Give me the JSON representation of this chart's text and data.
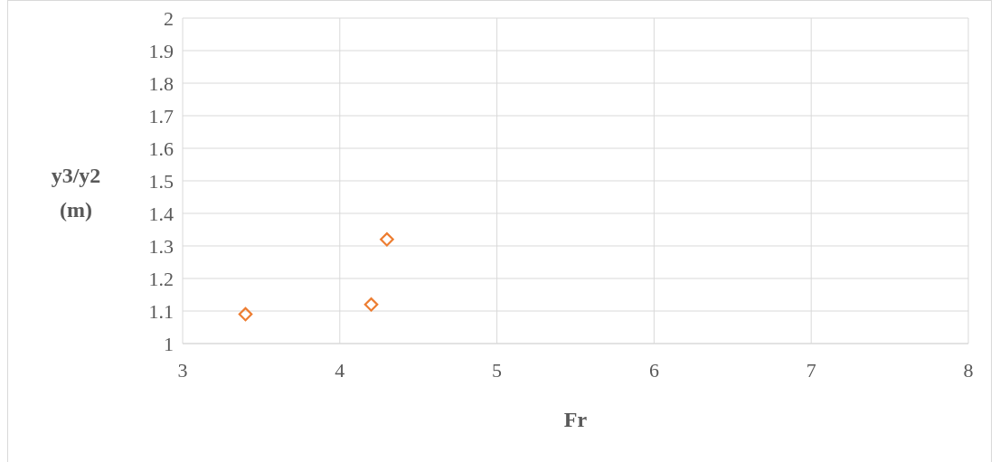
{
  "chart_data": {
    "type": "scatter",
    "xlabel": "Fr",
    "ylabel": "y3/y2 (m)",
    "x": [
      3.4,
      4.2,
      4.3
    ],
    "series": [
      {
        "color": "#ed7d31",
        "values": [
          1.09,
          1.12,
          1.32
        ]
      }
    ],
    "xlim": [
      3,
      8
    ],
    "xticks": [
      3,
      4,
      5,
      6,
      7,
      8
    ],
    "ylim": [
      1,
      2
    ],
    "yticks": [
      1,
      1.1,
      1.2,
      1.3,
      1.4,
      1.5,
      1.6,
      1.7,
      1.8,
      1.9,
      2
    ],
    "grid": true,
    "marker": "diamond"
  }
}
